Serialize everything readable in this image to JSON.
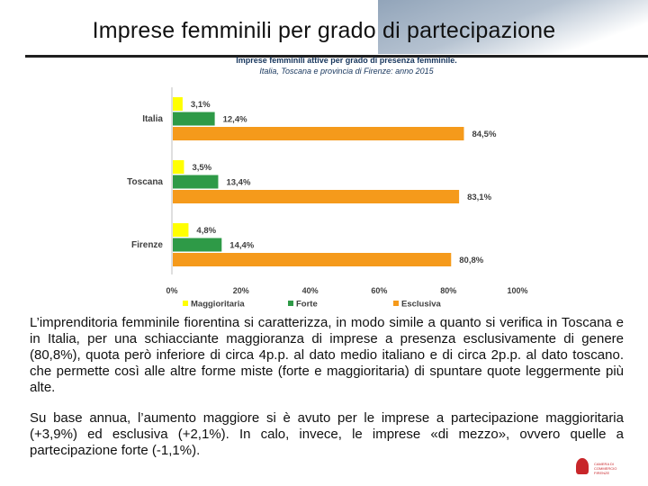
{
  "slide": {
    "title": "Imprese femminili per grado di partecipazione",
    "paragraphs": [
      "L’imprenditoria femminile fiorentina si caratterizza, in modo simile a quanto si verifica in Toscana e in Italia, per una schiacciante maggioranza di imprese a presenza esclusivamente di genere (80,8%), quota però inferiore di circa 4p.p. al dato medio italiano e di circa 2p.p. al dato toscano. che permette così alle altre forme miste (forte e maggioritaria) di spuntare quote leggermente più alte.",
      "Su base annua, l’aumento maggiore si è avuto per le imprese a partecipazione maggioritaria (+3,9%) ed esclusiva (+2,1%). In calo, invece, le imprese «di mezzo», ovvero quelle a partecipazione forte (-1,1%)."
    ],
    "logo_text": "CAMERA DI COMMERCIO FIRENZE"
  },
  "chart_data": {
    "type": "bar",
    "orientation": "horizontal",
    "title": "Imprese femminili attive per grado di presenza femminile.",
    "subtitle": "Italia, Toscana e provincia di Firenze: anno 2015",
    "categories": [
      "Italia",
      "Toscana",
      "Firenze"
    ],
    "series": [
      {
        "name": "Maggioritaria",
        "color": "#ffff00",
        "values": [
          3.1,
          3.5,
          4.8
        ],
        "labels": [
          "3,1%",
          "3,5%",
          "4,8%"
        ]
      },
      {
        "name": "Forte",
        "color": "#2e9a47",
        "values": [
          12.4,
          13.4,
          14.4
        ],
        "labels": [
          "12,4%",
          "13,4%",
          "14,4%"
        ]
      },
      {
        "name": "Esclusiva",
        "color": "#f59a1b",
        "values": [
          84.5,
          83.1,
          80.8
        ],
        "labels": [
          "84,5%",
          "83,1%",
          "80,8%"
        ]
      }
    ],
    "xlim": [
      0,
      100
    ],
    "x_ticks": [
      "0%",
      "20%",
      "40%",
      "60%",
      "80%",
      "100%"
    ],
    "grid": false,
    "legend_position": "bottom"
  }
}
